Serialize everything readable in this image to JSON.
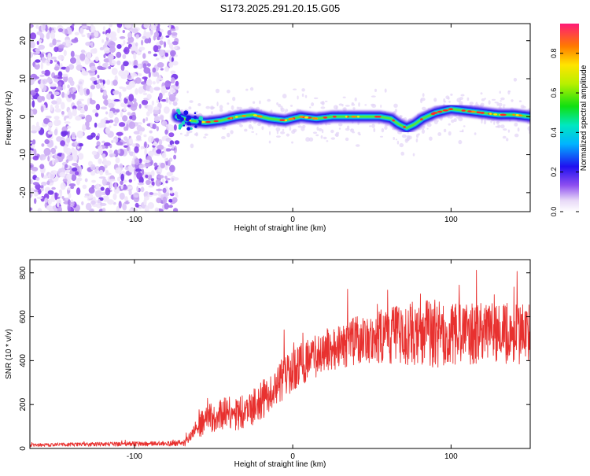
{
  "title": "S173.2025.291.20.15.G05",
  "chart_data": [
    {
      "type": "heatmap",
      "title": "S173.2025.291.20.15.G05",
      "xlabel": "Height of straight line (km)",
      "ylabel": "Frequency (Hz)",
      "xlim": [
        -166,
        150
      ],
      "ylim": [
        -25,
        24.5
      ],
      "xticks": [
        -100,
        0,
        100
      ],
      "yticks": [
        -20,
        -10,
        0,
        10,
        20
      ],
      "noise_region_x": [
        -166,
        -73
      ],
      "ridge": {
        "x": [
          -73,
          -65,
          -55,
          -45,
          -35,
          -25,
          -15,
          -5,
          5,
          15,
          25,
          35,
          45,
          55,
          62,
          67,
          72,
          77,
          82,
          90,
          100,
          110,
          120,
          130,
          140,
          150
        ],
        "freq": [
          0,
          -1,
          -1.5,
          -1,
          0,
          0.5,
          -0.5,
          -1,
          0,
          -0.5,
          0,
          0,
          0,
          0,
          -0.5,
          -2,
          -3,
          -2,
          -0.5,
          1,
          2,
          1.5,
          1,
          0.5,
          0.5,
          0
        ]
      },
      "colorbar": {
        "label": "Normalized spectral amplitude",
        "range": [
          0,
          0.95
        ],
        "ticks": [
          0.0,
          0.2,
          0.4,
          0.6,
          0.8
        ]
      }
    },
    {
      "type": "line",
      "xlabel": "Height of straight line (km)",
      "ylabel": "SNR (10 * v/v)",
      "xlim": [
        -166,
        150
      ],
      "ylim": [
        0,
        860
      ],
      "xticks": [
        -100,
        0,
        100
      ],
      "yticks": [
        0,
        200,
        400,
        600,
        800
      ],
      "line_color": "#e8312f",
      "series": [
        {
          "name": "SNR",
          "x": [
            -166,
            -140,
            -110,
            -80,
            -68,
            -62,
            -55,
            -45,
            -35,
            -25,
            -15,
            -10,
            -5,
            0,
            5,
            10,
            20,
            30,
            40,
            50,
            60,
            70,
            80,
            90,
            100,
            110,
            120,
            130,
            140,
            150
          ],
          "values": [
            15,
            18,
            20,
            22,
            25,
            80,
            130,
            160,
            160,
            190,
            240,
            300,
            320,
            340,
            380,
            400,
            440,
            460,
            490,
            510,
            510,
            520,
            530,
            520,
            520,
            520,
            530,
            530,
            520,
            520
          ],
          "spread": [
            10,
            12,
            14,
            16,
            20,
            60,
            90,
            110,
            110,
            120,
            130,
            130,
            140,
            140,
            140,
            140,
            140,
            150,
            160,
            170,
            180,
            200,
            220,
            220,
            200,
            200,
            200,
            200,
            200,
            200
          ]
        }
      ]
    }
  ]
}
